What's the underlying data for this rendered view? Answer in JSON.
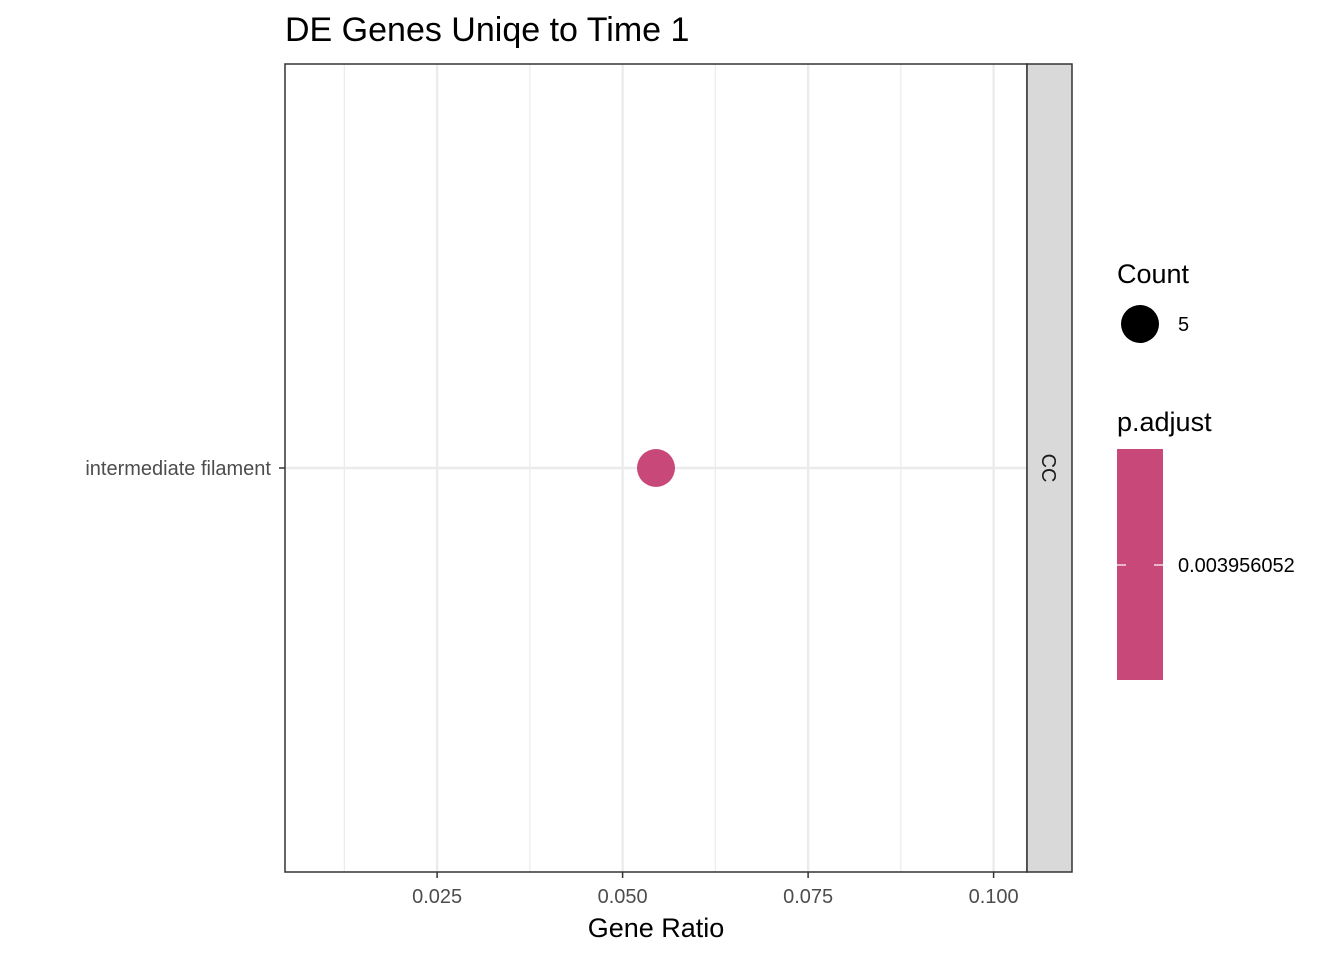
{
  "chart_data": {
    "type": "scatter",
    "title": "DE Genes Uniqe to Time 1",
    "xlabel": "Gene Ratio",
    "ylabel": "",
    "xlim": [
      0.0045,
      0.1045
    ],
    "x_ticks": [
      0.025,
      0.05,
      0.075,
      0.1
    ],
    "x_tick_labels": [
      "0.025",
      "0.050",
      "0.075",
      "0.100"
    ],
    "categories": [
      "intermediate filament"
    ],
    "facet": "CC",
    "grid": true,
    "points": [
      {
        "term": "intermediate filament",
        "gene_ratio": 0.0545,
        "count": 5,
        "p_adjust": 0.003956052,
        "color": "#c9487a"
      }
    ],
    "legend": {
      "placement": "right",
      "size_title": "Count",
      "size_entries": [
        "5"
      ],
      "color_title": "p.adjust",
      "color_entries": [
        "0.003956052"
      ],
      "color": "#c9487a"
    }
  }
}
